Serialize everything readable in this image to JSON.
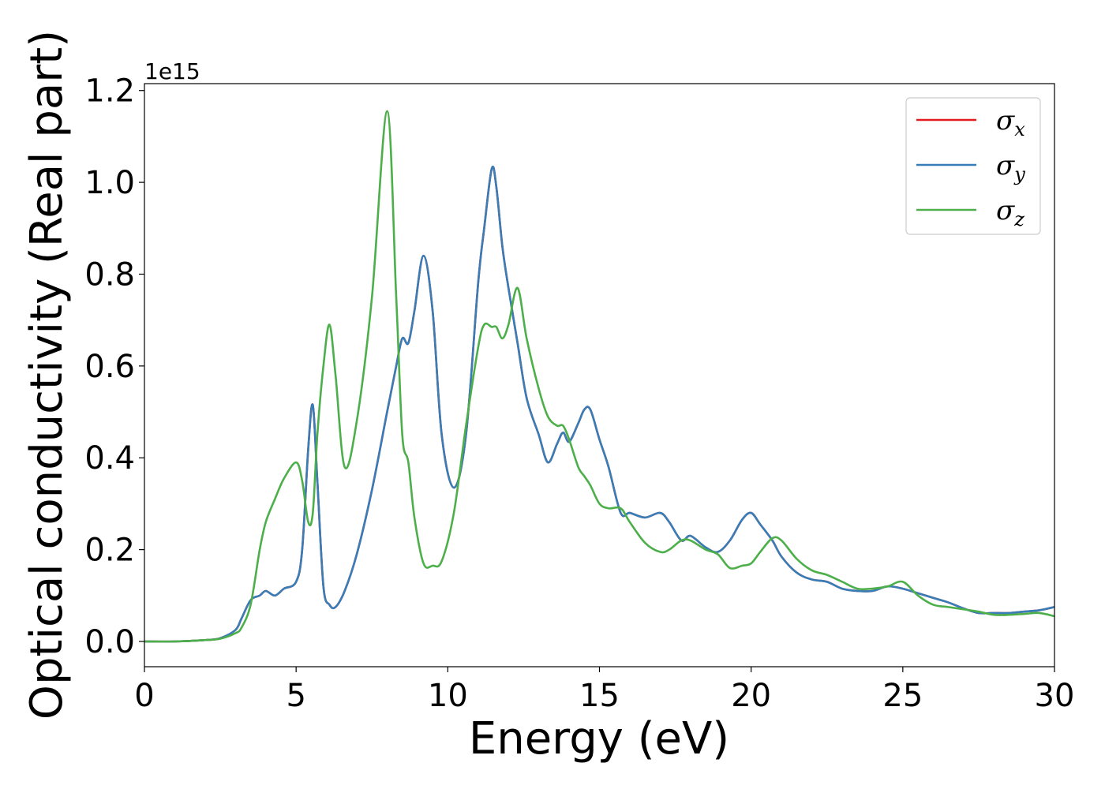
{
  "chart_data": {
    "type": "line",
    "title": "",
    "xlabel": "Energy (eV)",
    "ylabel": "Optical conductivity (Real part)",
    "y_offset_label": "1e15",
    "xlim": [
      0,
      30
    ],
    "ylim": [
      -0.055,
      1.215
    ],
    "x_ticks": [
      0,
      5,
      10,
      15,
      20,
      25,
      30
    ],
    "x_tick_labels": [
      "0",
      "5",
      "10",
      "15",
      "20",
      "25",
      "30"
    ],
    "y_ticks": [
      0.0,
      0.2,
      0.4,
      0.6,
      0.8,
      1.0,
      1.2
    ],
    "y_tick_labels": [
      "0.0",
      "0.2",
      "0.4",
      "0.6",
      "0.8",
      "1.0",
      "1.2"
    ],
    "grid": false,
    "legend_position": "top-right",
    "x": [
      0,
      1,
      2,
      2.5,
      3,
      3.2,
      3.5,
      3.8,
      4.0,
      4.3,
      4.6,
      5.0,
      5.2,
      5.4,
      5.55,
      5.7,
      5.9,
      6.1,
      6.3,
      6.6,
      7.0,
      7.5,
      8.0,
      8.3,
      8.5,
      8.7,
      8.9,
      9.2,
      9.5,
      9.8,
      10.2,
      10.6,
      11.0,
      11.2,
      11.45,
      11.6,
      11.8,
      12.0,
      12.3,
      12.6,
      13.0,
      13.3,
      13.6,
      13.8,
      14.0,
      14.3,
      14.5,
      14.7,
      15.0,
      15.3,
      15.7,
      16.0,
      16.5,
      17.0,
      17.3,
      17.7,
      18.0,
      18.5,
      18.9,
      19.3,
      19.7,
      20.0,
      20.3,
      20.7,
      21.0,
      21.5,
      22.0,
      22.5,
      23.0,
      23.5,
      24.0,
      24.5,
      25.0,
      25.5,
      26.0,
      26.5,
      27.0,
      27.5,
      28.0,
      28.5,
      29.0,
      29.5,
      30.0
    ],
    "series": [
      {
        "name": "σx",
        "color": "#e41a1c",
        "values": [
          0.0,
          0.0,
          0.003,
          0.007,
          0.025,
          0.05,
          0.09,
          0.1,
          0.11,
          0.1,
          0.115,
          0.13,
          0.2,
          0.42,
          0.515,
          0.35,
          0.12,
          0.08,
          0.075,
          0.11,
          0.19,
          0.33,
          0.5,
          0.6,
          0.66,
          0.65,
          0.72,
          0.84,
          0.72,
          0.45,
          0.335,
          0.45,
          0.78,
          0.9,
          1.03,
          0.99,
          0.86,
          0.77,
          0.65,
          0.53,
          0.45,
          0.39,
          0.43,
          0.455,
          0.435,
          0.475,
          0.505,
          0.505,
          0.44,
          0.38,
          0.28,
          0.28,
          0.27,
          0.28,
          0.26,
          0.22,
          0.23,
          0.205,
          0.195,
          0.22,
          0.265,
          0.28,
          0.255,
          0.22,
          0.185,
          0.15,
          0.135,
          0.13,
          0.115,
          0.11,
          0.11,
          0.12,
          0.115,
          0.105,
          0.095,
          0.085,
          0.072,
          0.062,
          0.062,
          0.062,
          0.065,
          0.068,
          0.075
        ]
      },
      {
        "name": "σy",
        "color": "#377eb8",
        "values": [
          0.0,
          0.0,
          0.003,
          0.007,
          0.025,
          0.05,
          0.09,
          0.1,
          0.11,
          0.1,
          0.115,
          0.13,
          0.2,
          0.42,
          0.515,
          0.35,
          0.12,
          0.08,
          0.075,
          0.11,
          0.19,
          0.33,
          0.5,
          0.6,
          0.66,
          0.65,
          0.72,
          0.84,
          0.72,
          0.45,
          0.335,
          0.45,
          0.78,
          0.9,
          1.03,
          0.99,
          0.86,
          0.77,
          0.65,
          0.53,
          0.45,
          0.39,
          0.43,
          0.455,
          0.435,
          0.475,
          0.505,
          0.505,
          0.44,
          0.38,
          0.28,
          0.28,
          0.27,
          0.28,
          0.26,
          0.22,
          0.23,
          0.205,
          0.195,
          0.22,
          0.265,
          0.28,
          0.255,
          0.22,
          0.185,
          0.15,
          0.135,
          0.13,
          0.115,
          0.11,
          0.11,
          0.12,
          0.115,
          0.105,
          0.095,
          0.085,
          0.072,
          0.062,
          0.062,
          0.062,
          0.065,
          0.068,
          0.075
        ]
      },
      {
        "name": "σz",
        "color": "#4daf4a",
        "values": [
          0.0,
          0.0,
          0.003,
          0.006,
          0.018,
          0.03,
          0.08,
          0.2,
          0.26,
          0.31,
          0.355,
          0.39,
          0.35,
          0.26,
          0.28,
          0.45,
          0.6,
          0.69,
          0.58,
          0.38,
          0.48,
          0.75,
          1.155,
          0.75,
          0.45,
          0.39,
          0.27,
          0.17,
          0.165,
          0.175,
          0.28,
          0.47,
          0.64,
          0.69,
          0.685,
          0.685,
          0.66,
          0.69,
          0.77,
          0.66,
          0.55,
          0.49,
          0.47,
          0.47,
          0.44,
          0.38,
          0.36,
          0.34,
          0.3,
          0.29,
          0.29,
          0.26,
          0.215,
          0.195,
          0.2,
          0.22,
          0.22,
          0.2,
          0.19,
          0.16,
          0.165,
          0.17,
          0.195,
          0.225,
          0.22,
          0.18,
          0.155,
          0.145,
          0.13,
          0.115,
          0.115,
          0.12,
          0.13,
          0.1,
          0.08,
          0.075,
          0.07,
          0.065,
          0.058,
          0.058,
          0.06,
          0.062,
          0.055
        ]
      }
    ]
  },
  "legend": {
    "entries": [
      {
        "label": "σx",
        "base": "σ",
        "sub": "x",
        "color": "#e41a1c"
      },
      {
        "label": "σy",
        "base": "σ",
        "sub": "y",
        "color": "#377eb8"
      },
      {
        "label": "σz",
        "base": "σ",
        "sub": "z",
        "color": "#4daf4a"
      }
    ]
  }
}
